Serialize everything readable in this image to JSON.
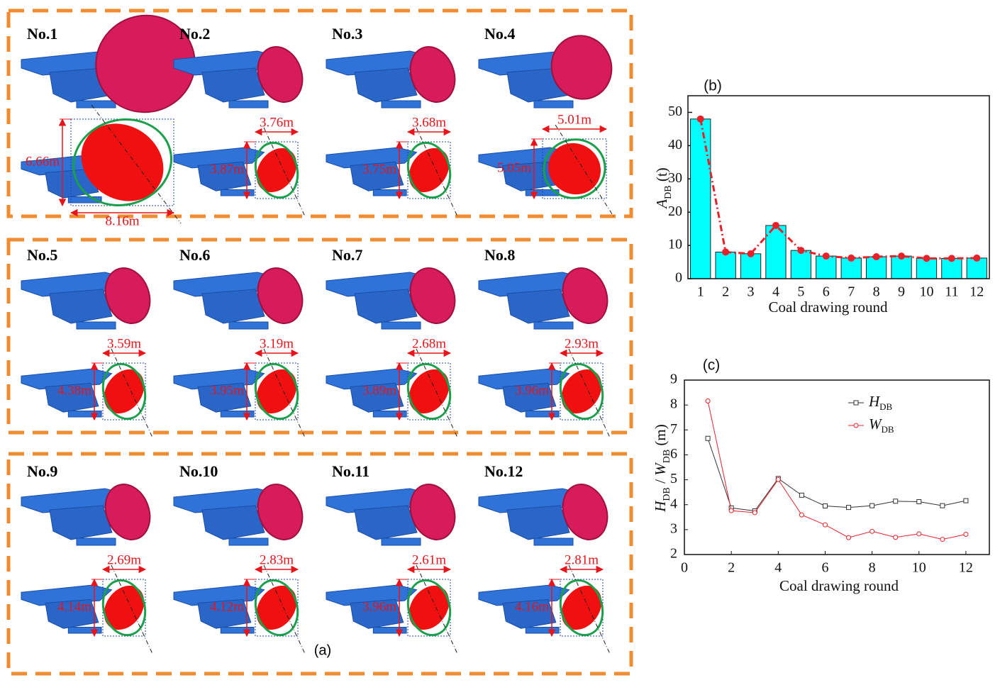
{
  "panel_a": {
    "label": "(a)",
    "rounds": [
      {
        "title": "No.1",
        "height": "6.66m",
        "width": "8.16m"
      },
      {
        "title": "No.2",
        "height": "3.87m",
        "width": "3.76m"
      },
      {
        "title": "No.3",
        "height": "3.75m",
        "width": "3.68m"
      },
      {
        "title": "No.4",
        "height": "5.05m",
        "width": "5.01m"
      },
      {
        "title": "No.5",
        "height": "4.38m",
        "width": "3.59m"
      },
      {
        "title": "No.6",
        "height": "3.95m",
        "width": "3.19m"
      },
      {
        "title": "No.7",
        "height": "3.89m",
        "width": "2.68m"
      },
      {
        "title": "No.8",
        "height": "3.96m",
        "width": "2.93m"
      },
      {
        "title": "No.9",
        "height": "4.14m",
        "width": "2.69m"
      },
      {
        "title": "No.10",
        "height": "4.12m",
        "width": "2.83m"
      },
      {
        "title": "No.11",
        "height": "3.96m",
        "width": "2.61m"
      },
      {
        "title": "No.12",
        "height": "4.16m",
        "width": "2.81m"
      }
    ]
  },
  "chart_data": [
    {
      "type": "bar",
      "label": "(b)",
      "categories": [
        "1",
        "2",
        "3",
        "4",
        "5",
        "6",
        "7",
        "8",
        "9",
        "10",
        "11",
        "12"
      ],
      "values": [
        48,
        8,
        7.5,
        16,
        8.5,
        6.8,
        6.2,
        6.6,
        6.8,
        6.1,
        6.1,
        6.2
      ],
      "color": "#00ffff",
      "line_color": "#e8202a",
      "ylim": [
        0,
        55
      ],
      "yticks": [
        0,
        10,
        20,
        30,
        40,
        50
      ],
      "xlabel": "Coal drawing round",
      "ylabel": [
        {
          "text": "A",
          "style": "italic"
        },
        {
          "text": "DB",
          "style": "sub"
        },
        {
          "text": " (t)",
          "style": "normal"
        }
      ]
    },
    {
      "type": "line",
      "label": "(c)",
      "x": [
        1,
        2,
        3,
        4,
        5,
        6,
        7,
        8,
        9,
        10,
        11,
        12
      ],
      "xlim": [
        0,
        13
      ],
      "xticks": [
        0,
        2,
        4,
        6,
        8,
        10,
        12
      ],
      "ylim": [
        2,
        9
      ],
      "yticks": [
        2,
        3,
        4,
        5,
        6,
        7,
        8,
        9
      ],
      "series": [
        {
          "name": "HDB",
          "color": "#333333",
          "marker": "square",
          "values": [
            6.66,
            3.87,
            3.75,
            5.05,
            4.38,
            3.95,
            3.89,
            3.96,
            4.14,
            4.12,
            3.96,
            4.16
          ]
        },
        {
          "name": "WDB",
          "color": "#e8202a",
          "marker": "circle",
          "values": [
            8.16,
            3.76,
            3.68,
            5.01,
            3.59,
            3.19,
            2.68,
            2.93,
            2.69,
            2.83,
            2.61,
            2.81
          ]
        }
      ],
      "xlabel": "Coal drawing round",
      "ylabel": [
        {
          "text": "H",
          "style": "italic"
        },
        {
          "text": "DB",
          "style": "sub"
        },
        {
          "text": " / ",
          "style": "normal"
        },
        {
          "text": "W",
          "style": "italic"
        },
        {
          "text": "DB",
          "style": "sub"
        },
        {
          "text": " (m)",
          "style": "normal"
        }
      ]
    }
  ]
}
